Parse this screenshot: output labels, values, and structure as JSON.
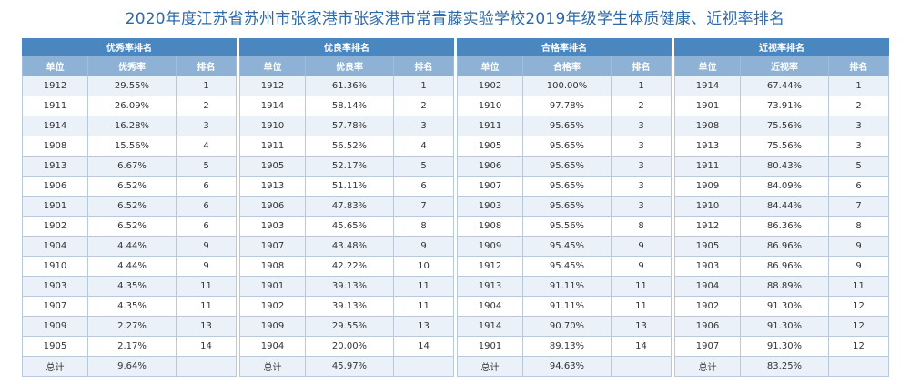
{
  "title": "2020年度江苏省苏州市张家港市张家港市常青藤实验学校2019年级学生体质健康、近视率排名",
  "tables": [
    {
      "title": "优秀率排名",
      "columns": [
        "单位",
        "优秀率",
        "排名"
      ],
      "rows": [
        [
          "1912",
          "29.55%",
          "1"
        ],
        [
          "1911",
          "26.09%",
          "2"
        ],
        [
          "1914",
          "16.28%",
          "3"
        ],
        [
          "1908",
          "15.56%",
          "4"
        ],
        [
          "1913",
          "6.67%",
          "5"
        ],
        [
          "1906",
          "6.52%",
          "6"
        ],
        [
          "1901",
          "6.52%",
          "6"
        ],
        [
          "1902",
          "6.52%",
          "6"
        ],
        [
          "1904",
          "4.44%",
          "9"
        ],
        [
          "1910",
          "4.44%",
          "9"
        ],
        [
          "1903",
          "4.35%",
          "11"
        ],
        [
          "1907",
          "4.35%",
          "11"
        ],
        [
          "1909",
          "2.27%",
          "13"
        ],
        [
          "1905",
          "2.17%",
          "14"
        ],
        [
          "总计",
          "9.64%",
          ""
        ]
      ]
    },
    {
      "title": "优良率排名",
      "columns": [
        "单位",
        "优良率",
        "排名"
      ],
      "rows": [
        [
          "1912",
          "61.36%",
          "1"
        ],
        [
          "1914",
          "58.14%",
          "2"
        ],
        [
          "1910",
          "57.78%",
          "3"
        ],
        [
          "1911",
          "56.52%",
          "4"
        ],
        [
          "1905",
          "52.17%",
          "5"
        ],
        [
          "1913",
          "51.11%",
          "6"
        ],
        [
          "1906",
          "47.83%",
          "7"
        ],
        [
          "1903",
          "45.65%",
          "8"
        ],
        [
          "1907",
          "43.48%",
          "9"
        ],
        [
          "1908",
          "42.22%",
          "10"
        ],
        [
          "1901",
          "39.13%",
          "11"
        ],
        [
          "1902",
          "39.13%",
          "11"
        ],
        [
          "1909",
          "29.55%",
          "13"
        ],
        [
          "1904",
          "20.00%",
          "14"
        ],
        [
          "总计",
          "45.97%",
          ""
        ]
      ]
    },
    {
      "title": "合格率排名",
      "columns": [
        "单位",
        "合格率",
        "排名"
      ],
      "rows": [
        [
          "1902",
          "100.00%",
          "1"
        ],
        [
          "1910",
          "97.78%",
          "2"
        ],
        [
          "1911",
          "95.65%",
          "3"
        ],
        [
          "1905",
          "95.65%",
          "3"
        ],
        [
          "1906",
          "95.65%",
          "3"
        ],
        [
          "1907",
          "95.65%",
          "3"
        ],
        [
          "1903",
          "95.65%",
          "3"
        ],
        [
          "1908",
          "95.56%",
          "8"
        ],
        [
          "1909",
          "95.45%",
          "9"
        ],
        [
          "1912",
          "95.45%",
          "9"
        ],
        [
          "1913",
          "91.11%",
          "11"
        ],
        [
          "1904",
          "91.11%",
          "11"
        ],
        [
          "1914",
          "90.70%",
          "13"
        ],
        [
          "1901",
          "89.13%",
          "14"
        ],
        [
          "总计",
          "94.63%",
          ""
        ]
      ]
    },
    {
      "title": "近视率排名",
      "columns": [
        "单位",
        "近视率",
        "排名"
      ],
      "rows": [
        [
          "1914",
          "67.44%",
          "1"
        ],
        [
          "1901",
          "73.91%",
          "2"
        ],
        [
          "1908",
          "75.56%",
          "3"
        ],
        [
          "1913",
          "75.56%",
          "3"
        ],
        [
          "1911",
          "80.43%",
          "5"
        ],
        [
          "1909",
          "84.09%",
          "6"
        ],
        [
          "1910",
          "84.44%",
          "7"
        ],
        [
          "1912",
          "86.36%",
          "8"
        ],
        [
          "1905",
          "86.96%",
          "9"
        ],
        [
          "1903",
          "86.96%",
          "9"
        ],
        [
          "1904",
          "88.89%",
          "11"
        ],
        [
          "1902",
          "91.30%",
          "12"
        ],
        [
          "1906",
          "91.30%",
          "12"
        ],
        [
          "1907",
          "91.30%",
          "12"
        ],
        [
          "总计",
          "83.25%",
          ""
        ]
      ]
    }
  ]
}
